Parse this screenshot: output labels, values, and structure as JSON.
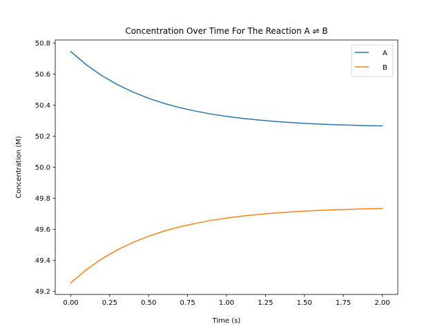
{
  "chart_data": {
    "type": "line",
    "title": "Concentration Over Time For The Reaction A ⇌ B",
    "xlabel": "Time (s)",
    "ylabel": "Concentration (M)",
    "xlim": [
      -0.1,
      2.1
    ],
    "ylim": [
      49.18,
      50.82
    ],
    "xticks": [
      0.0,
      0.25,
      0.5,
      0.75,
      1.0,
      1.25,
      1.5,
      1.75,
      2.0
    ],
    "xtick_labels": [
      "0.00",
      "0.25",
      "0.50",
      "0.75",
      "1.00",
      "1.25",
      "1.50",
      "1.75",
      "2.00"
    ],
    "yticks": [
      49.2,
      49.4,
      49.6,
      49.8,
      50.0,
      50.2,
      50.4,
      50.6,
      50.8
    ],
    "ytick_labels": [
      "49.2",
      "49.4",
      "49.6",
      "49.8",
      "50.0",
      "50.2",
      "50.4",
      "50.6",
      "50.8"
    ],
    "grid": false,
    "legend_position": "upper right",
    "x": [
      0.0,
      0.1,
      0.2,
      0.3,
      0.4,
      0.5,
      0.6,
      0.7,
      0.8,
      0.9,
      1.0,
      1.1,
      1.2,
      1.3,
      1.4,
      1.5,
      1.6,
      1.7,
      1.8,
      1.9,
      2.0
    ],
    "series": [
      {
        "name": "A",
        "color": "#1f77b4",
        "values": [
          50.745,
          50.66,
          50.59,
          50.532,
          50.484,
          50.444,
          50.411,
          50.384,
          50.362,
          50.343,
          50.328,
          50.315,
          50.305,
          50.296,
          50.289,
          50.283,
          50.278,
          50.274,
          50.271,
          50.268,
          50.266
        ]
      },
      {
        "name": "B",
        "color": "#ff7f0e",
        "values": [
          49.255,
          49.34,
          49.41,
          49.468,
          49.516,
          49.556,
          49.589,
          49.616,
          49.638,
          49.657,
          49.672,
          49.685,
          49.695,
          49.704,
          49.711,
          49.717,
          49.722,
          49.726,
          49.729,
          49.732,
          49.734
        ]
      }
    ]
  }
}
